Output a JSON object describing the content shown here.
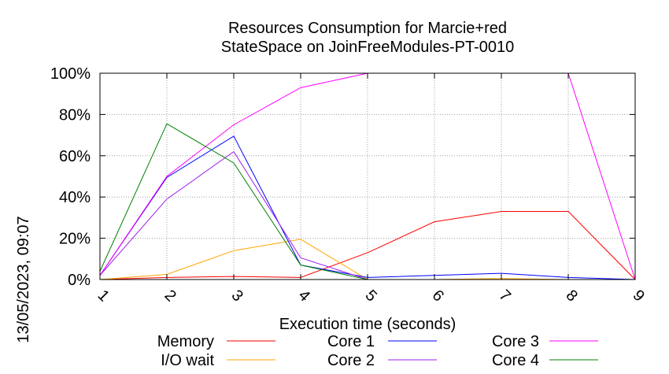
{
  "chart_data": {
    "type": "line",
    "title_lines": [
      "Resources Consumption for Marcie+red",
      "StateSpace on JoinFreeModules-PT-0010"
    ],
    "xlabel": "Execution time (seconds)",
    "ylabel": "",
    "side_label": "13/05/2023, 09:07",
    "x": [
      1,
      2,
      3,
      4,
      5,
      6,
      7,
      8,
      9
    ],
    "x_tick_labels": [
      "1",
      "2",
      "3",
      "4",
      "5",
      "6",
      "7",
      "8",
      "9"
    ],
    "xlim": [
      1,
      9
    ],
    "ylim": [
      0,
      100
    ],
    "y_ticks": [
      0,
      20,
      40,
      60,
      80,
      100
    ],
    "y_tick_labels": [
      "0%",
      "20%",
      "40%",
      "60%",
      "80%",
      "100%"
    ],
    "grid": true,
    "legend_position": "bottom",
    "series": [
      {
        "name": "Memory",
        "color": "#ff0000",
        "values": [
          0,
          1,
          1.5,
          1,
          13,
          28,
          33,
          33,
          0
        ]
      },
      {
        "name": "I/O wait",
        "color": "#ffa500",
        "values": [
          0,
          2.5,
          14,
          19.5,
          0,
          0,
          0.5,
          0,
          0
        ]
      },
      {
        "name": "Core 1",
        "color": "#0000ff",
        "values": [
          2,
          49.5,
          69.5,
          7,
          1,
          2,
          3,
          1,
          0
        ]
      },
      {
        "name": "Core 2",
        "color": "#a020f0",
        "values": [
          2,
          39,
          62,
          10.5,
          0,
          0,
          0,
          0,
          0
        ]
      },
      {
        "name": "Core 3",
        "color": "#ff00ff",
        "values": [
          2,
          50,
          75,
          93,
          100,
          100,
          100,
          100,
          0
        ]
      },
      {
        "name": "Core 4",
        "color": "#008000",
        "values": [
          4,
          75.5,
          56.5,
          7,
          0,
          0,
          0,
          0,
          0
        ]
      }
    ]
  }
}
